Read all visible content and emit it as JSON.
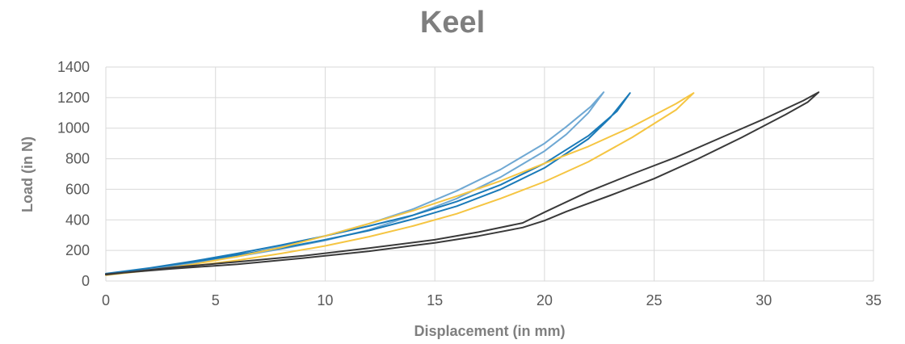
{
  "chart_data": {
    "type": "line",
    "title": "Keel",
    "xlabel": "Displacement (in mm)",
    "ylabel": "Load (in N)",
    "xlim": [
      0,
      35
    ],
    "ylim": [
      0,
      1400
    ],
    "xticks": [
      0,
      5,
      10,
      15,
      20,
      25,
      30,
      35
    ],
    "yticks": [
      0,
      200,
      400,
      600,
      800,
      1000,
      1200,
      1400
    ],
    "grid": true,
    "legend": "none",
    "series": [
      {
        "color": "#6fa8d3",
        "x": [
          0,
          2,
          4,
          6,
          8,
          10,
          12,
          14,
          16,
          18,
          20,
          21,
          22,
          22.7,
          22.1,
          21,
          20,
          18,
          16,
          14,
          12,
          10,
          8,
          6,
          4,
          2,
          0
        ],
        "y": [
          45,
          80,
          120,
          160,
          210,
          265,
          335,
          430,
          540,
          680,
          850,
          960,
          1100,
          1235,
          1140,
          1010,
          900,
          730,
          590,
          470,
          375,
          295,
          225,
          165,
          118,
          75,
          40
        ]
      },
      {
        "color": "#1a7ab8",
        "x": [
          0,
          2,
          4,
          6,
          8,
          10,
          12,
          14,
          16,
          18,
          20,
          22,
          23,
          23.9,
          23.3,
          22,
          20,
          18,
          16,
          14,
          12,
          10,
          8,
          6,
          4,
          2,
          0
        ],
        "y": [
          48,
          85,
          125,
          170,
          215,
          270,
          330,
          405,
          490,
          600,
          740,
          930,
          1070,
          1230,
          1110,
          950,
          770,
          630,
          520,
          430,
          360,
          295,
          235,
          180,
          130,
          85,
          45
        ]
      },
      {
        "color": "#f5c542",
        "x": [
          0,
          2,
          4,
          6,
          8,
          10,
          12,
          14,
          16,
          18,
          20,
          22,
          24,
          26,
          26.8,
          26,
          24,
          22,
          20,
          18,
          16,
          14,
          12,
          10,
          8,
          6,
          4,
          2,
          0
        ],
        "y": [
          42,
          70,
          100,
          135,
          180,
          230,
          290,
          360,
          440,
          540,
          650,
          780,
          940,
          1120,
          1230,
          1160,
          1010,
          880,
          770,
          655,
          555,
          460,
          375,
          295,
          220,
          160,
          110,
          70,
          38
        ]
      },
      {
        "color": "#3a3a3a",
        "x": [
          0,
          3,
          6,
          9,
          12,
          15,
          17,
          19,
          20,
          21,
          23,
          25,
          27,
          29,
          31,
          32,
          32.5,
          31.8,
          30,
          28,
          26,
          24,
          22,
          20,
          19,
          17,
          15,
          12,
          9,
          6,
          3,
          0
        ],
        "y": [
          45,
          80,
          110,
          150,
          195,
          250,
          295,
          350,
          395,
          455,
          560,
          670,
          800,
          940,
          1090,
          1170,
          1235,
          1180,
          1060,
          935,
          810,
          700,
          585,
          450,
          380,
          320,
          270,
          215,
          165,
          125,
          88,
          42
        ]
      }
    ]
  }
}
